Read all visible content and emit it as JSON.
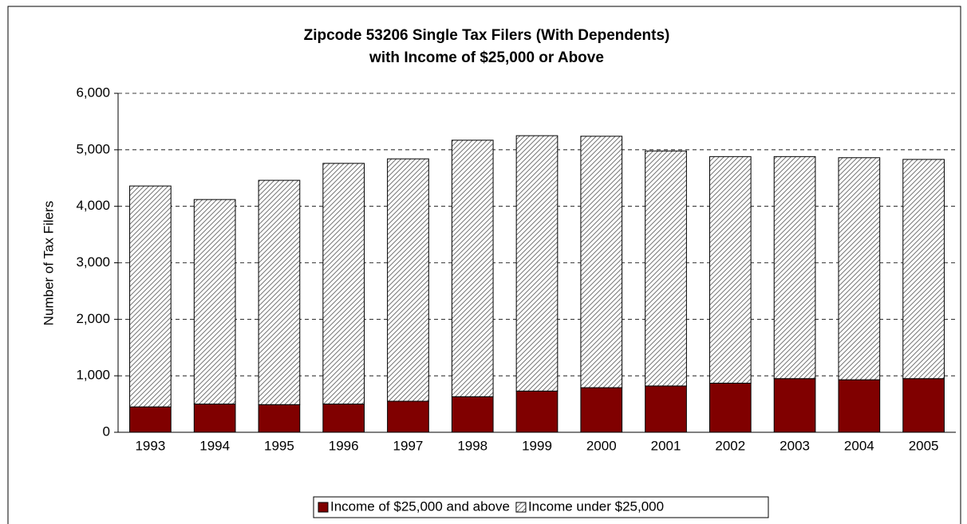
{
  "chart_data": {
    "type": "stacked_bar",
    "title": [
      "Zipcode 53206 Single Tax Filers (With Dependents)",
      "with Income of $25,000 or Above"
    ],
    "y_label": "Number of Tax Filers",
    "categories": [
      "1993",
      "1994",
      "1995",
      "1996",
      "1997",
      "1998",
      "1999",
      "2000",
      "2001",
      "2002",
      "2003",
      "2004",
      "2005"
    ],
    "series": [
      {
        "name": "Income of $25,000 and above",
        "color": "#800000",
        "hatch": false,
        "values": [
          450,
          500,
          490,
          500,
          550,
          630,
          730,
          790,
          820,
          870,
          950,
          930,
          950
        ]
      },
      {
        "name": "Income under $25,000",
        "color": "#ffffff",
        "hatch": true,
        "values": [
          3910,
          3620,
          3970,
          4260,
          4290,
          4540,
          4520,
          4450,
          4160,
          4010,
          3930,
          3930,
          3880
        ]
      }
    ],
    "ylim": [
      0,
      6000
    ],
    "yticks": [
      0,
      {
        "value": 1000,
        "label": "1,000"
      },
      {
        "value": 2000,
        "label": "2,000"
      },
      {
        "value": 3000,
        "label": "3,000"
      },
      {
        "value": 4000,
        "label": "4,000"
      },
      {
        "value": 5000,
        "label": "5,000"
      },
      {
        "value": 6000,
        "label": "6,000"
      }
    ],
    "grid": true,
    "legend": "bottom"
  }
}
